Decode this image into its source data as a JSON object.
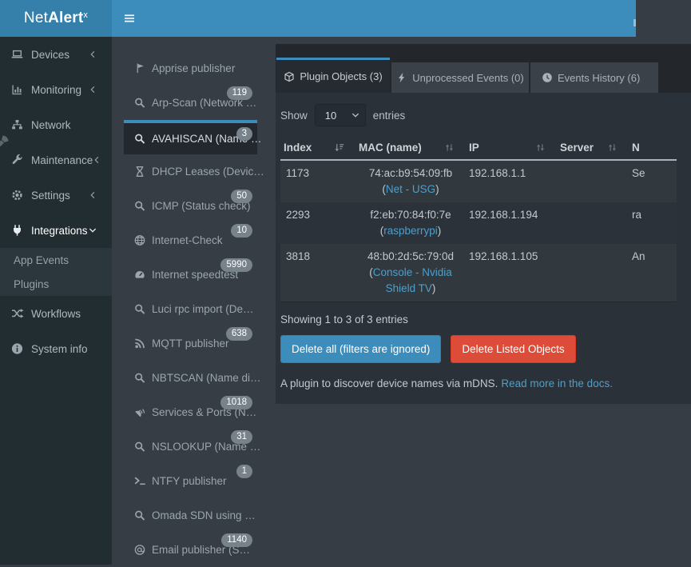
{
  "colors": {
    "accent": "#3c8dbc",
    "danger": "#dd4b39",
    "link": "#4d9fcd",
    "badge_bg": "#78828a"
  },
  "topbar": {
    "logo": {
      "prefix": "Net",
      "bold": "Alert",
      "sup": "x"
    },
    "menu_icon": "menu-icon"
  },
  "sidebar": {
    "items": [
      {
        "label": "Devices",
        "icon": "laptop-icon",
        "chevron": "left"
      },
      {
        "label": "Monitoring",
        "icon": "chart-icon",
        "chevron": "left"
      },
      {
        "label": "Network",
        "icon": "network-icon",
        "chevron": ""
      },
      {
        "label": "Maintenance",
        "icon": "wrench-icon",
        "chevron": "left"
      },
      {
        "label": "Settings",
        "icon": "gear-icon",
        "chevron": "left"
      },
      {
        "label": "Integrations",
        "icon": "plug-icon",
        "chevron": "down",
        "open": true,
        "children": [
          "App Events",
          "Plugins"
        ]
      },
      {
        "label": "Workflows",
        "icon": "shuffle-icon",
        "chevron": ""
      },
      {
        "label": "System info",
        "icon": "info-icon",
        "chevron": ""
      }
    ]
  },
  "plugins": {
    "items": [
      {
        "label": "Apprise publisher",
        "icon": "flag-icon",
        "badge": ""
      },
      {
        "label": "Arp-Scan (Network …",
        "icon": "search-icon",
        "badge": "119"
      },
      {
        "label": "AVAHISCAN (Name …",
        "icon": "search-icon",
        "badge": "3",
        "selected": true
      },
      {
        "label": "DHCP Leases (Devic…",
        "icon": "hourglass-icon",
        "badge": ""
      },
      {
        "label": "ICMP (Status check)",
        "icon": "search-icon",
        "badge": "50"
      },
      {
        "label": "Internet-Check",
        "icon": "globe-icon",
        "badge": "10"
      },
      {
        "label": "Internet speedtest",
        "icon": "gauge-icon",
        "badge": "5990"
      },
      {
        "label": "Luci rpc import (De…",
        "icon": "search-icon",
        "badge": ""
      },
      {
        "label": "MQTT publisher",
        "icon": "rss-icon",
        "badge": "638"
      },
      {
        "label": "NBTSCAN (Name di…",
        "icon": "search-icon",
        "badge": ""
      },
      {
        "label": "Services & Ports (N…",
        "icon": "satellite-icon",
        "badge": "1018"
      },
      {
        "label": "NSLOOKUP (Name …",
        "icon": "search-icon",
        "badge": "31"
      },
      {
        "label": "NTFY publisher",
        "icon": "terminal-icon",
        "badge": "1"
      },
      {
        "label": "Omada SDN using …",
        "icon": "search-icon",
        "badge": ""
      },
      {
        "label": "Email publisher (S…",
        "icon": "at-icon",
        "badge": "1140"
      }
    ]
  },
  "tabs": [
    {
      "label": "Plugin Objects (3)",
      "icon": "cube-icon",
      "active": true
    },
    {
      "label": "Unprocessed Events (0)",
      "icon": "bolt-icon",
      "active": false
    },
    {
      "label": "Events History (6)",
      "icon": "clock-icon",
      "active": false
    }
  ],
  "controls": {
    "show_label": "Show",
    "page_size": "10",
    "entries_label": "entries"
  },
  "table": {
    "columns": [
      {
        "label": "Index",
        "sort": "asc"
      },
      {
        "label": "MAC (name)",
        "sort": "both"
      },
      {
        "label": "IP",
        "sort": "both"
      },
      {
        "label": "Server",
        "sort": "both"
      },
      {
        "label": "N",
        "sort": "none"
      }
    ],
    "rows": [
      {
        "index": "1173",
        "mac": "74:ac:b9:54:09:fb",
        "name": "Net - USG",
        "ip": "192.168.1.1",
        "server": "",
        "name_col": "Se"
      },
      {
        "index": "2293",
        "mac": "f2:eb:70:84:f0:7e",
        "name": "raspberrypi",
        "ip": "192.168.1.194",
        "server": "",
        "name_col": "ra"
      },
      {
        "index": "3818",
        "mac": "48:b0:2d:5c:79:0d",
        "name": "Console - Nvidia Shield TV",
        "ip": "192.168.1.105",
        "server": "",
        "name_col": "An"
      }
    ],
    "summary": "Showing 1 to 3 of 3 entries"
  },
  "buttons": {
    "delete_all": "Delete all (filters are ignored)",
    "delete_listed": "Delete Listed Objects"
  },
  "footer": {
    "description": "A plugin to discover device names via mDNS.",
    "docs_link": "Read more in the docs."
  }
}
